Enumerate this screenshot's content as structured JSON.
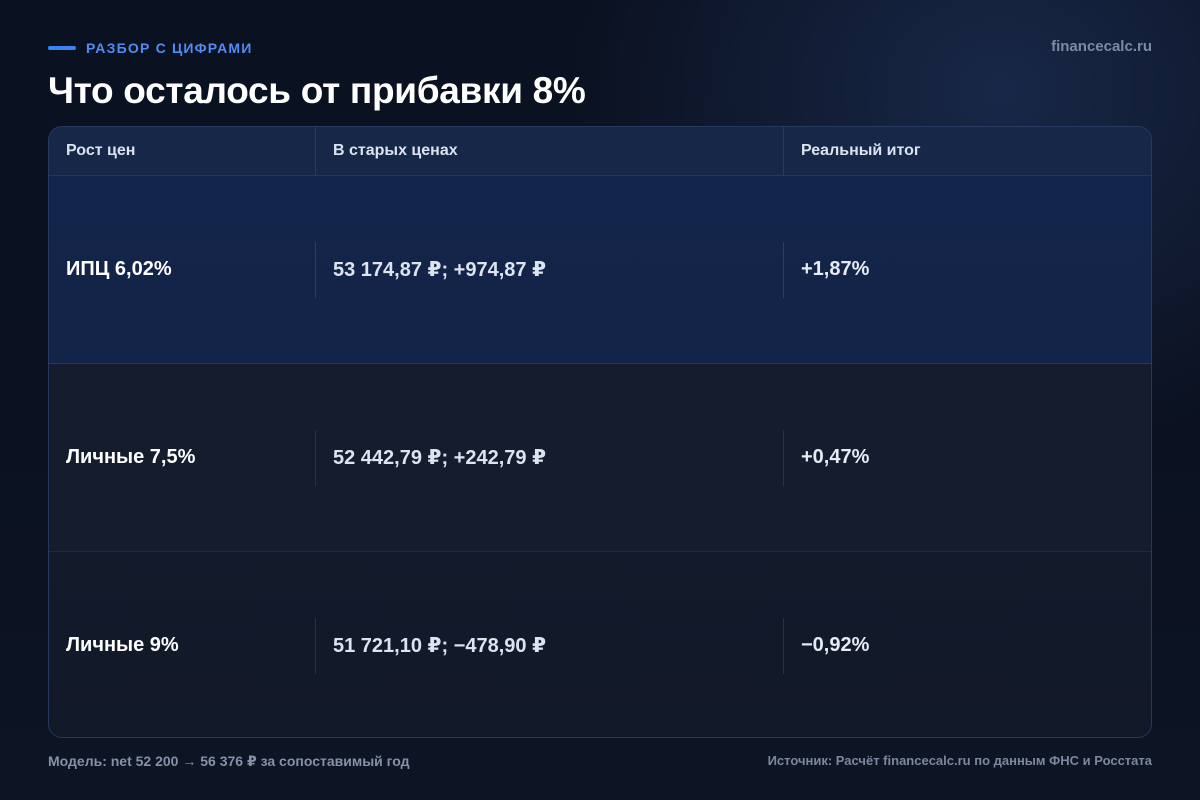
{
  "header": {
    "kicker": "РАЗБОР С ЦИФРАМИ",
    "site": "financecalc.ru",
    "title": "Что осталось от прибавки 8%"
  },
  "table": {
    "columns": [
      "Рост цен",
      "В старых ценах",
      "Реальный итог"
    ],
    "rows": [
      [
        "ИПЦ 6,02%",
        "53 174,87 ₽; +974,87 ₽",
        "+1,87%"
      ],
      [
        "Личные 7,5%",
        "52 442,79 ₽; +242,79 ₽",
        "+0,47%"
      ],
      [
        "Личные 9%",
        "51 721,10 ₽; −478,90 ₽",
        "−0,92%"
      ]
    ]
  },
  "footer": {
    "model": "Модель: net 52 200 → 56 376 ₽ за сопоставимый год",
    "source": "Источник: Расчёт financecalc.ru по данным ФНС и Росстата"
  },
  "colors": {
    "accent": "#3b82f6",
    "background": "#0b1120",
    "highlight_row": "#13254a"
  }
}
